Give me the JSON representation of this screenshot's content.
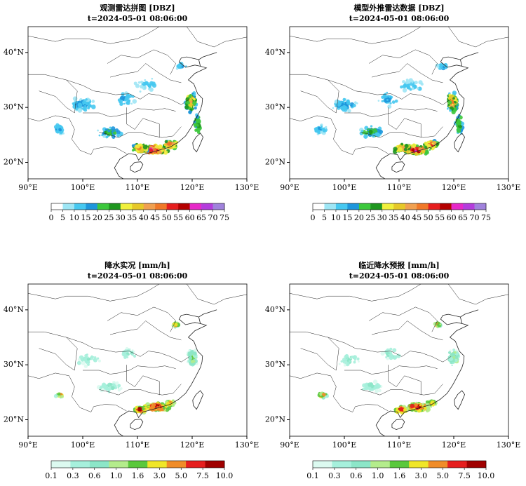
{
  "panels": [
    {
      "title": "观测雷达拼图 [DBZ]",
      "subtitle": "t=2024-05-01 08:06:00",
      "lon_range": [
        90,
        130
      ],
      "lat_range": [
        17,
        44.7
      ],
      "xticks": [
        {
          "value": 90,
          "label": "90°E"
        },
        {
          "value": 100,
          "label": "100°E"
        },
        {
          "value": 110,
          "label": "110°E"
        },
        {
          "value": 120,
          "label": "120°E"
        },
        {
          "value": 130,
          "label": "130°E"
        }
      ],
      "yticks": [
        {
          "value": 20,
          "label": "20°N"
        },
        {
          "value": 30,
          "label": "30°N"
        },
        {
          "value": 40,
          "label": "40°N"
        }
      ],
      "colorbar": {
        "ticks": [
          0,
          5,
          10,
          15,
          20,
          25,
          30,
          35,
          40,
          45,
          50,
          55,
          60,
          65,
          70,
          75
        ],
        "colors": [
          "#ffffff",
          "#9ee6f5",
          "#46c8f0",
          "#1e96dc",
          "#3cc83c",
          "#1e961e",
          "#f0f03c",
          "#e6c828",
          "#f0a050",
          "#f07828",
          "#e61e1e",
          "#b40000",
          "#e628c8",
          "#b43cdc",
          "#a082dc"
        ]
      }
    },
    {
      "title": "模型外推雷达数据 [DBZ]",
      "subtitle": "t=2024-05-01 08:06:00",
      "lon_range": [
        90,
        130
      ],
      "lat_range": [
        17,
        44.7
      ],
      "xticks": [
        {
          "value": 90,
          "label": "90°E"
        },
        {
          "value": 100,
          "label": "100°E"
        },
        {
          "value": 110,
          "label": "110°E"
        },
        {
          "value": 120,
          "label": "120°E"
        },
        {
          "value": 130,
          "label": "130°E"
        }
      ],
      "yticks": [
        {
          "value": 20,
          "label": "20°N"
        },
        {
          "value": 30,
          "label": "30°N"
        },
        {
          "value": 40,
          "label": "40°N"
        }
      ],
      "colorbar": {
        "ticks": [
          0,
          5,
          10,
          15,
          20,
          25,
          30,
          35,
          40,
          45,
          50,
          55,
          60,
          65,
          70,
          75
        ],
        "colors": [
          "#ffffff",
          "#9ee6f5",
          "#46c8f0",
          "#1e96dc",
          "#3cc83c",
          "#1e961e",
          "#f0f03c",
          "#e6c828",
          "#f0a050",
          "#f07828",
          "#e61e1e",
          "#b40000",
          "#e628c8",
          "#b43cdc",
          "#a082dc"
        ]
      }
    },
    {
      "title": "降水实况 [mm/h]",
      "subtitle": "t=2024-05-01 08:06:00",
      "lon_range": [
        90,
        130
      ],
      "lat_range": [
        17,
        44.7
      ],
      "xticks": [
        {
          "value": 90,
          "label": "90°E"
        },
        {
          "value": 100,
          "label": "100°E"
        },
        {
          "value": 110,
          "label": "110°E"
        },
        {
          "value": 120,
          "label": "120°E"
        },
        {
          "value": 130,
          "label": "130°E"
        }
      ],
      "yticks": [
        {
          "value": 20,
          "label": "20°N"
        },
        {
          "value": 30,
          "label": "30°N"
        },
        {
          "value": 40,
          "label": "40°N"
        }
      ],
      "colorbar": {
        "ticks": [
          "0.1",
          "0.3",
          "0.6",
          "1.0",
          "1.6",
          "3.0",
          "5.0",
          "7.5",
          "10.0"
        ],
        "colors": [
          "#dcfaf0",
          "#a6f0dc",
          "#8ce6c8",
          "#b4ec8c",
          "#5ac83c",
          "#f0e628",
          "#f08c28",
          "#e61e1e",
          "#a00000"
        ]
      }
    },
    {
      "title": "临近降水预报 [mm/h]",
      "subtitle": "t=2024-05-01 08:06:00",
      "lon_range": [
        90,
        130
      ],
      "lat_range": [
        17,
        44.7
      ],
      "xticks": [
        {
          "value": 90,
          "label": "90°E"
        },
        {
          "value": 100,
          "label": "100°E"
        },
        {
          "value": 110,
          "label": "110°E"
        },
        {
          "value": 120,
          "label": "120°E"
        },
        {
          "value": 130,
          "label": "130°E"
        }
      ],
      "yticks": [
        {
          "value": 20,
          "label": "20°N"
        },
        {
          "value": 30,
          "label": "30°N"
        },
        {
          "value": 40,
          "label": "40°N"
        }
      ],
      "colorbar": {
        "ticks": [
          "0.1",
          "0.3",
          "0.6",
          "1.0",
          "1.6",
          "3.0",
          "5.0",
          "7.5",
          "10.0"
        ],
        "colors": [
          "#dcfaf0",
          "#a6f0dc",
          "#8ce6c8",
          "#b4ec8c",
          "#5ac83c",
          "#f0e628",
          "#f08c28",
          "#e61e1e",
          "#a00000"
        ]
      }
    }
  ]
}
